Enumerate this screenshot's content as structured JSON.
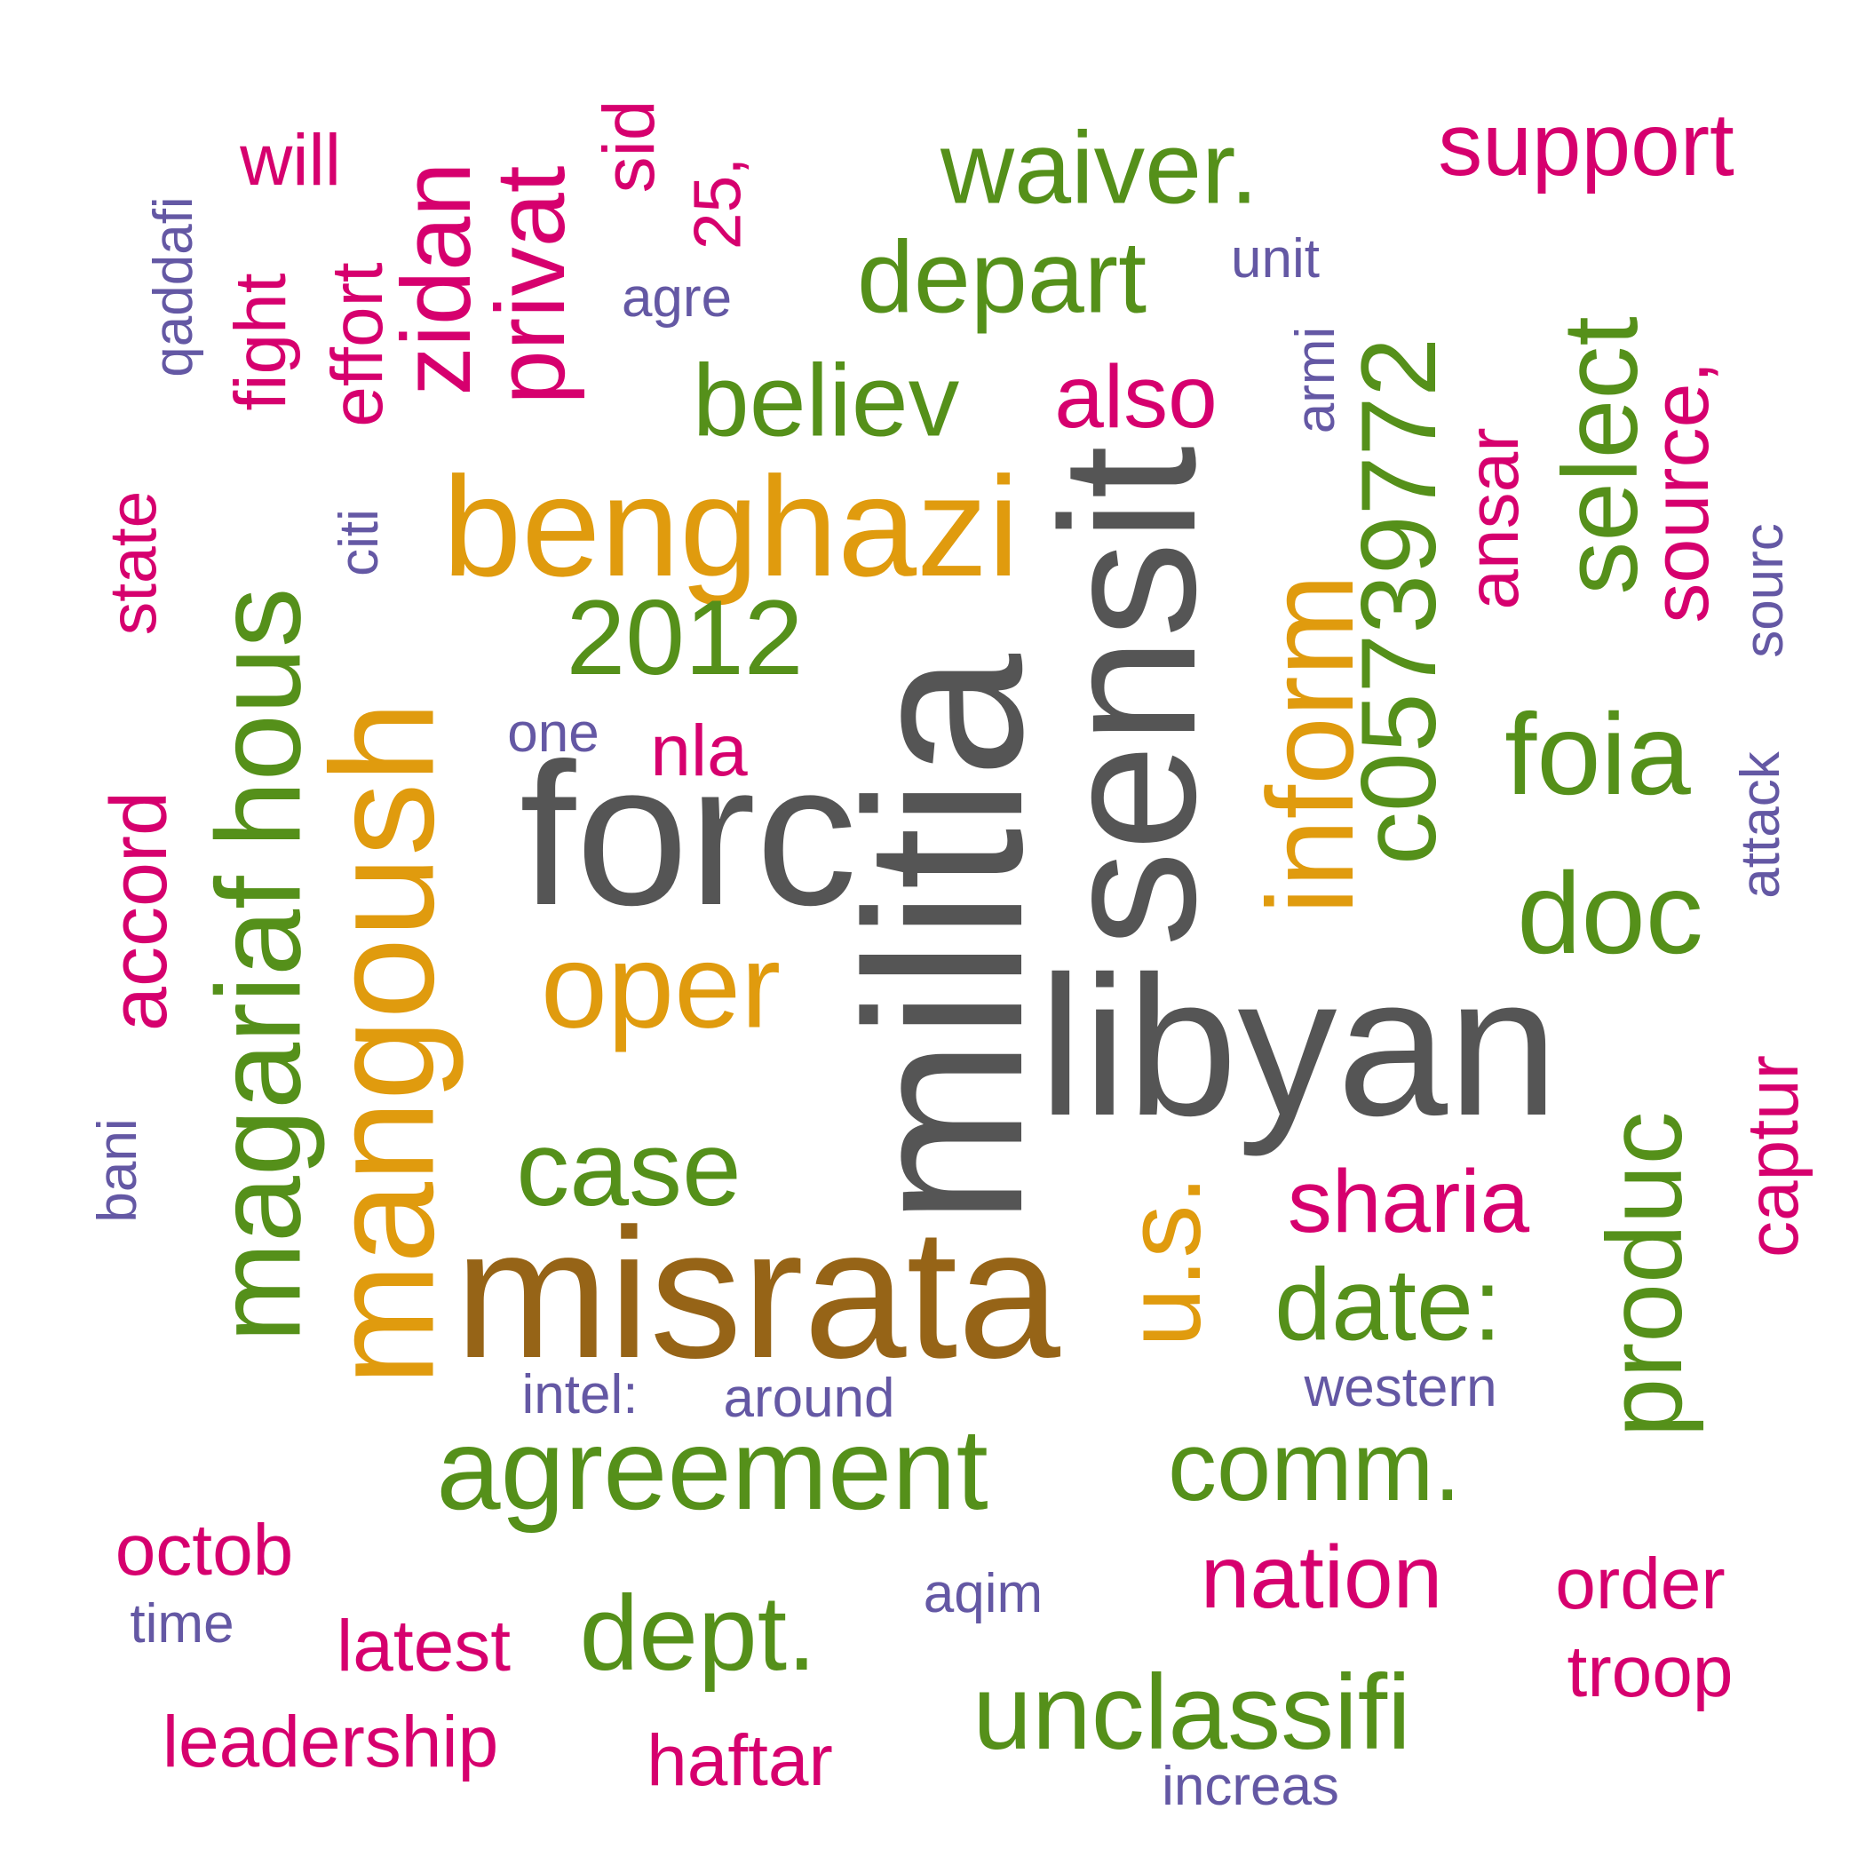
{
  "colors": {
    "gray": "#555555",
    "brown": "#966417",
    "gold": "#E09B0E",
    "green": "#55901A",
    "magenta": "#D6006E",
    "purple": "#6458A4"
  },
  "words": [
    {
      "text": "militia",
      "color": "#555555"
    },
    {
      "text": "libyan",
      "color": "#555555"
    },
    {
      "text": "forc",
      "color": "#555555"
    },
    {
      "text": "sensit",
      "color": "#555555"
    },
    {
      "text": "misrata",
      "color": "#966417"
    },
    {
      "text": "benghazi",
      "color": "#E09B0E"
    },
    {
      "text": "mangoush",
      "color": "#E09B0E"
    },
    {
      "text": "oper",
      "color": "#E09B0E"
    },
    {
      "text": "inform",
      "color": "#E09B0E"
    },
    {
      "text": "u.s.",
      "color": "#E09B0E"
    },
    {
      "text": "agreement",
      "color": "#55901A"
    },
    {
      "text": "magariaf",
      "color": "#55901A"
    },
    {
      "text": "hous",
      "color": "#55901A"
    },
    {
      "text": "2012",
      "color": "#55901A"
    },
    {
      "text": "case",
      "color": "#55901A"
    },
    {
      "text": "believ",
      "color": "#55901A"
    },
    {
      "text": "depart",
      "color": "#55901A"
    },
    {
      "text": "waiver.",
      "color": "#55901A"
    },
    {
      "text": "c05739772",
      "color": "#55901A"
    },
    {
      "text": "select",
      "color": "#55901A"
    },
    {
      "text": "foia",
      "color": "#55901A"
    },
    {
      "text": "doc",
      "color": "#55901A"
    },
    {
      "text": "date:",
      "color": "#55901A"
    },
    {
      "text": "produc",
      "color": "#55901A"
    },
    {
      "text": "comm.",
      "color": "#55901A"
    },
    {
      "text": "dept.",
      "color": "#55901A"
    },
    {
      "text": "unclassifi",
      "color": "#55901A"
    },
    {
      "text": "support",
      "color": "#D6006E"
    },
    {
      "text": "will",
      "color": "#D6006E"
    },
    {
      "text": "fight",
      "color": "#D6006E"
    },
    {
      "text": "effort",
      "color": "#D6006E"
    },
    {
      "text": "zidan",
      "color": "#D6006E"
    },
    {
      "text": "privat",
      "color": "#D6006E"
    },
    {
      "text": "25,",
      "color": "#D6006E"
    },
    {
      "text": "sid",
      "color": "#D6006E"
    },
    {
      "text": "also",
      "color": "#D6006E"
    },
    {
      "text": "ansar",
      "color": "#D6006E"
    },
    {
      "text": "source,",
      "color": "#D6006E"
    },
    {
      "text": "state",
      "color": "#D6006E"
    },
    {
      "text": "accord",
      "color": "#D6006E"
    },
    {
      "text": "nla",
      "color": "#D6006E"
    },
    {
      "text": "sharia",
      "color": "#D6006E"
    },
    {
      "text": "captur",
      "color": "#D6006E"
    },
    {
      "text": "octob",
      "color": "#D6006E"
    },
    {
      "text": "latest",
      "color": "#D6006E"
    },
    {
      "text": "leadership",
      "color": "#D6006E"
    },
    {
      "text": "haftar",
      "color": "#D6006E"
    },
    {
      "text": "nation",
      "color": "#D6006E"
    },
    {
      "text": "order",
      "color": "#D6006E"
    },
    {
      "text": "troop",
      "color": "#D6006E"
    },
    {
      "text": "qaddafi",
      "color": "#6458A4"
    },
    {
      "text": "agre",
      "color": "#6458A4"
    },
    {
      "text": "unit",
      "color": "#6458A4"
    },
    {
      "text": "armi",
      "color": "#6458A4"
    },
    {
      "text": "citi",
      "color": "#6458A4"
    },
    {
      "text": "sourc",
      "color": "#6458A4"
    },
    {
      "text": "one",
      "color": "#6458A4"
    },
    {
      "text": "attack",
      "color": "#6458A4"
    },
    {
      "text": "bani",
      "color": "#6458A4"
    },
    {
      "text": "intel:",
      "color": "#6458A4"
    },
    {
      "text": "around",
      "color": "#6458A4"
    },
    {
      "text": "western",
      "color": "#6458A4"
    },
    {
      "text": "time",
      "color": "#6458A4"
    },
    {
      "text": "aqim",
      "color": "#6458A4"
    },
    {
      "text": "increas",
      "color": "#6458A4"
    }
  ]
}
